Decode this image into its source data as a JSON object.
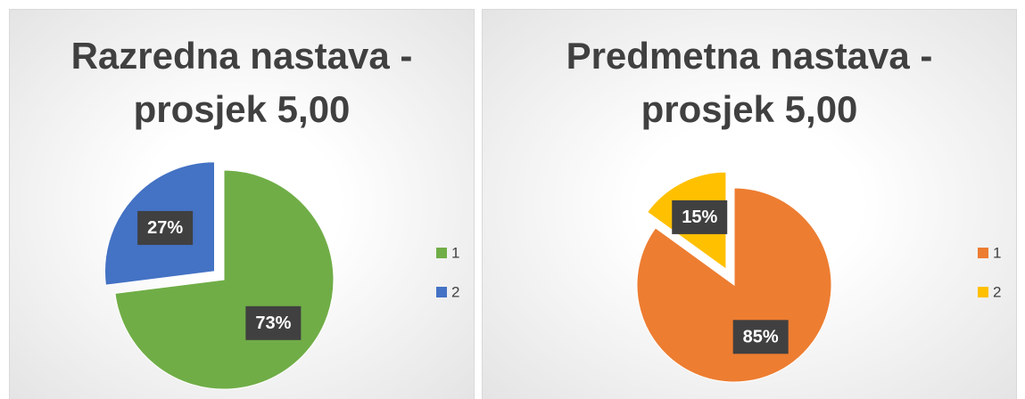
{
  "chart_data": [
    {
      "type": "pie",
      "title": "Razredna nastava - prosjek 5,00",
      "categories": [
        "1",
        "2"
      ],
      "values": [
        73,
        27
      ],
      "value_labels": [
        "73%",
        "27%"
      ],
      "colors": [
        "#70ad47",
        "#4472c4"
      ],
      "legend": "right"
    },
    {
      "type": "pie",
      "title": "Predmetna nastava - prosjek 5,00",
      "categories": [
        "1",
        "2"
      ],
      "values": [
        85,
        15
      ],
      "value_labels": [
        "85%",
        "15%"
      ],
      "colors": [
        "#ed7d31",
        "#ffc000"
      ],
      "legend": "right"
    }
  ]
}
